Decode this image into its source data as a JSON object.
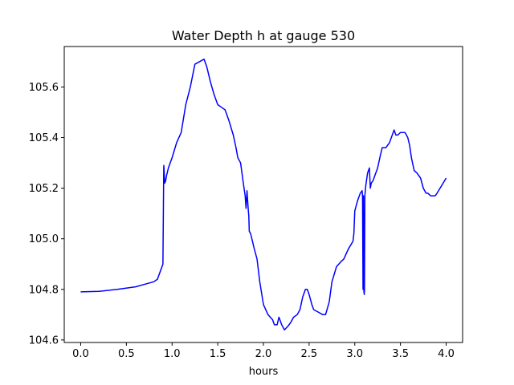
{
  "chart_data": {
    "type": "line",
    "title": "Water Depth h at gauge 530",
    "xlabel": "hours",
    "ylabel": "",
    "xlim": [
      -0.18,
      4.18
    ],
    "ylim": [
      104.59,
      105.76
    ],
    "xticks": [
      0.0,
      0.5,
      1.0,
      1.5,
      2.0,
      2.5,
      3.0,
      3.5,
      4.0
    ],
    "xtick_labels": [
      "0.0",
      "0.5",
      "1.0",
      "1.5",
      "2.0",
      "2.5",
      "3.0",
      "3.5",
      "4.0"
    ],
    "yticks": [
      104.6,
      104.8,
      105.0,
      105.2,
      105.4,
      105.6
    ],
    "ytick_labels": [
      "104.6",
      "104.8",
      "105.0",
      "105.2",
      "105.4",
      "105.6"
    ],
    "grid": false,
    "line_color": "#0000ff",
    "series": [
      {
        "x": [
          0.0,
          0.2,
          0.4,
          0.6,
          0.7,
          0.8,
          0.84,
          0.87,
          0.9,
          0.909,
          0.91,
          0.92,
          0.93,
          0.935,
          0.94,
          0.96,
          1.0,
          1.05,
          1.1,
          1.15,
          1.2,
          1.25,
          1.3,
          1.35,
          1.38,
          1.42,
          1.46,
          1.5,
          1.54,
          1.58,
          1.62,
          1.67,
          1.7,
          1.72,
          1.75,
          1.78,
          1.8,
          1.81,
          1.82,
          1.835,
          1.84,
          1.845,
          1.86,
          1.9,
          1.93,
          1.96,
          2.0,
          2.05,
          2.1,
          2.12,
          2.15,
          2.17,
          2.2,
          2.23,
          2.27,
          2.3,
          2.33,
          2.37,
          2.4,
          2.43,
          2.46,
          2.48,
          2.5,
          2.53,
          2.55,
          2.6,
          2.65,
          2.68,
          2.72,
          2.75,
          2.8,
          2.85,
          2.88,
          2.93,
          2.98,
          2.99,
          3.0,
          3.03,
          3.06,
          3.08,
          3.085,
          3.09,
          3.095,
          3.1,
          3.104,
          3.106,
          3.11,
          3.12,
          3.14,
          3.16,
          3.17,
          3.18,
          3.2,
          3.25,
          3.28,
          3.3,
          3.34,
          3.38,
          3.4,
          3.43,
          3.45,
          3.47,
          3.5,
          3.55,
          3.58,
          3.6,
          3.62,
          3.65,
          3.68,
          3.72,
          3.75,
          3.78,
          3.8,
          3.83,
          3.85,
          3.88,
          3.9,
          3.95,
          4.0
        ],
        "y": [
          104.79,
          104.792,
          104.8,
          104.81,
          104.82,
          104.83,
          104.84,
          104.87,
          104.9,
          105.28,
          105.29,
          105.22,
          105.23,
          105.24,
          105.25,
          105.28,
          105.32,
          105.38,
          105.42,
          105.53,
          105.6,
          105.69,
          105.7,
          105.71,
          105.68,
          105.62,
          105.57,
          105.53,
          105.52,
          105.51,
          105.47,
          105.41,
          105.36,
          105.32,
          105.3,
          105.22,
          105.17,
          105.12,
          105.19,
          105.11,
          105.09,
          105.03,
          105.02,
          104.96,
          104.92,
          104.83,
          104.74,
          104.7,
          104.68,
          104.66,
          104.66,
          104.69,
          104.66,
          104.64,
          104.655,
          104.67,
          104.69,
          104.7,
          104.72,
          104.77,
          104.8,
          104.8,
          104.78,
          104.74,
          104.72,
          104.71,
          104.7,
          104.7,
          104.75,
          104.83,
          104.89,
          104.91,
          104.92,
          104.96,
          104.99,
          105.02,
          105.11,
          105.15,
          105.18,
          105.19,
          105.17,
          104.8,
          105.17,
          104.79,
          104.78,
          104.8,
          105.17,
          105.21,
          105.26,
          105.28,
          105.2,
          105.22,
          105.23,
          105.28,
          105.33,
          105.36,
          105.36,
          105.38,
          105.4,
          105.43,
          105.41,
          105.41,
          105.42,
          105.42,
          105.4,
          105.37,
          105.32,
          105.27,
          105.26,
          105.24,
          105.2,
          105.18,
          105.18,
          105.17,
          105.17,
          105.17,
          105.18,
          105.21,
          105.24
        ]
      }
    ]
  }
}
